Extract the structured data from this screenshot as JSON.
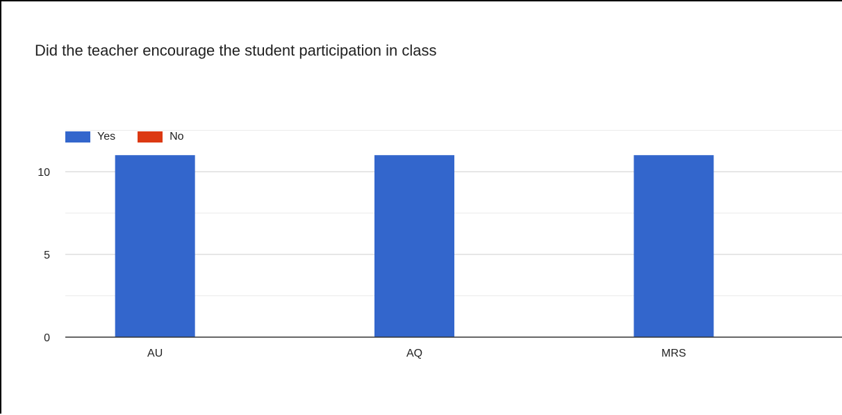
{
  "chart_data": {
    "type": "bar",
    "title": "Did the teacher encourage the student participation in class",
    "categories": [
      "AU",
      "AQ",
      "MRS"
    ],
    "series": [
      {
        "name": "Yes",
        "color": "#3366cc",
        "values": [
          11,
          11,
          11
        ]
      },
      {
        "name": "No",
        "color": "#dc3912",
        "values": [
          0,
          0,
          0
        ]
      }
    ],
    "yticks": [
      0,
      5,
      10
    ],
    "ylim": [
      0,
      12.5
    ],
    "grid": true,
    "legend_position": "top-left"
  }
}
